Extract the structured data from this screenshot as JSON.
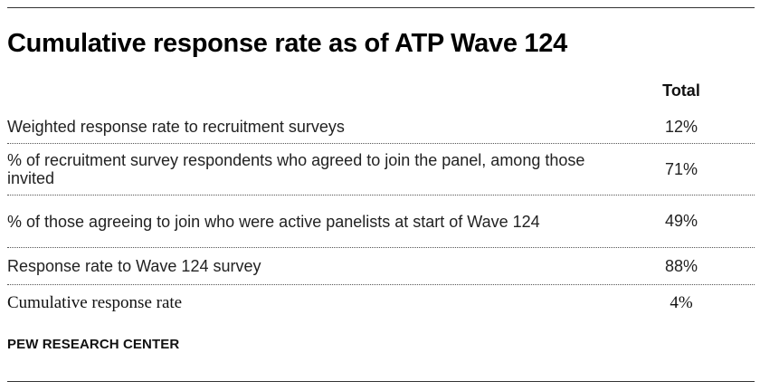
{
  "title": "Cumulative response rate as of ATP Wave 124",
  "table": {
    "column_header": "Total",
    "rows": [
      {
        "label": "Weighted response rate to recruitment surveys",
        "value": "12%"
      },
      {
        "label": "% of recruitment survey respondents who agreed to join the panel, among those invited",
        "value": "71%"
      },
      {
        "label": "% of those agreeing to join who were active panelists at start of Wave 124",
        "value": "49%"
      },
      {
        "label": "Response rate to Wave 124 survey",
        "value": "88%"
      }
    ],
    "summary": {
      "label": "Cumulative response rate",
      "value": "4%"
    }
  },
  "source": "PEW RESEARCH CENTER"
}
